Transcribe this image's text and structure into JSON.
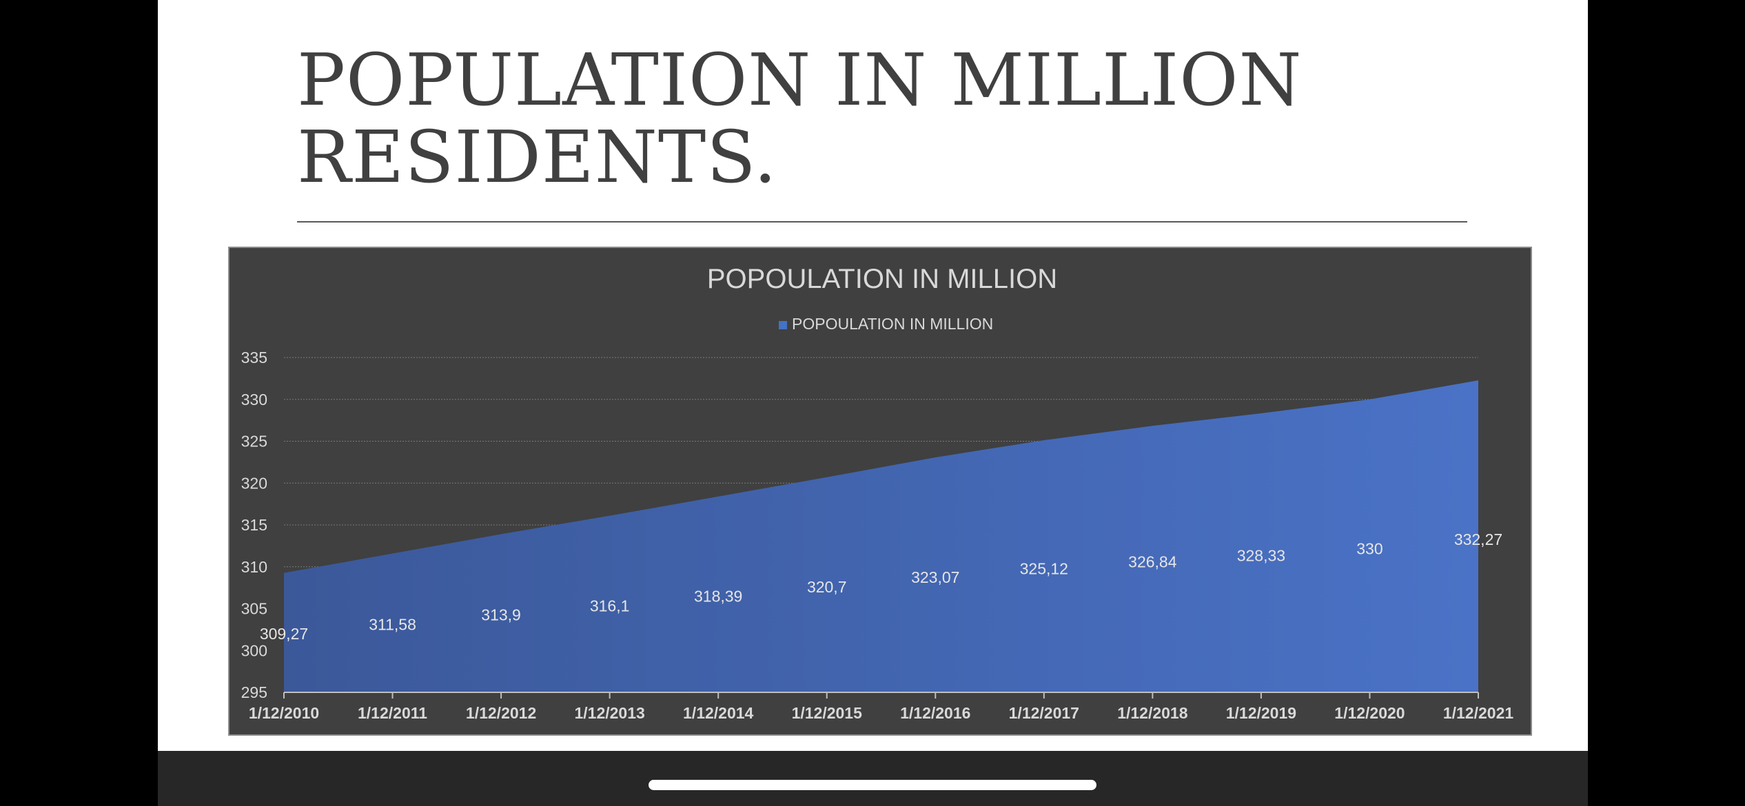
{
  "slide": {
    "title_line1": "POPULATION IN MILLION",
    "title_line2": "RESIDENTS."
  },
  "chart_data": {
    "type": "area",
    "title": "POPOULATION IN MILLION",
    "legend": {
      "position": "top",
      "entries": [
        "POPOULATION IN MILLION"
      ]
    },
    "categories": [
      "1/12/2010",
      "1/12/2011",
      "1/12/2012",
      "1/12/2013",
      "1/12/2014",
      "1/12/2015",
      "1/12/2016",
      "1/12/2017",
      "1/12/2018",
      "1/12/2019",
      "1/12/2020",
      "1/12/2021"
    ],
    "series": [
      {
        "name": "POPOULATION IN MILLION",
        "values": [
          309.27,
          311.58,
          313.9,
          316.1,
          318.39,
          320.7,
          323.07,
          325.12,
          326.84,
          328.33,
          330,
          332.27
        ],
        "labels": [
          "309,27",
          "311,58",
          "313,9",
          "316,1",
          "318,39",
          "320,7",
          "323,07",
          "325,12",
          "326,84",
          "328,33",
          "330",
          "332,27"
        ],
        "color": "#4472c4"
      }
    ],
    "ylim": [
      295,
      335
    ],
    "yticks": [
      "295",
      "300",
      "305",
      "310",
      "315",
      "320",
      "325",
      "330",
      "335"
    ],
    "grid": true,
    "xlabel": "",
    "ylabel": ""
  },
  "colors": {
    "chart_background": "#404040",
    "area_fill_start": "#3b5899",
    "area_fill_end": "#4a72c6",
    "text": "#d9d9d9"
  }
}
